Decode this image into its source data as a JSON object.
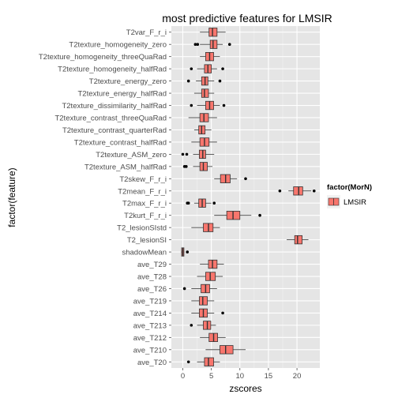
{
  "chart_data": {
    "type": "boxplot",
    "title": "most predictive features for LMSIR",
    "xlabel": "zscores",
    "ylabel": "factor(feature)",
    "xlim": [
      -2,
      24
    ],
    "xticks": [
      0,
      5,
      10,
      15,
      20
    ],
    "grid": true,
    "legend": {
      "title": "factor(MorN)",
      "entries": [
        "LMSIR"
      ],
      "placement": "right"
    },
    "colors": {
      "fill": "#f8766d",
      "panel": "#e5e5e5",
      "grid_major": "#ffffff",
      "grid_minor": "#f2f2f2",
      "line": "#333333"
    },
    "series": [
      {
        "name": "LMSIR",
        "categories": [
          "T2var_F_r_i",
          "T2texture_homogeneity_zero",
          "T2texture_homogeneity_threeQuaRad",
          "T2texture_homogeneity_halfRad",
          "T2texture_energy_zero",
          "T2texture_energy_halfRad",
          "T2texture_dissimilarity_halfRad",
          "T2texture_contrast_threeQuaRad",
          "T2texture_contrast_quarterRad",
          "T2texture_contrast_halfRad",
          "T2texture_ASM_zero",
          "T2texture_ASM_halfRad",
          "T2skew_F_r_i",
          "T2mean_F_r_i",
          "T2max_F_r_i",
          "T2kurt_F_r_i",
          "T2_lesionSIstd",
          "T2_lesionSI",
          "shadowMean",
          "ave_T29",
          "ave_T28",
          "ave_T26",
          "ave_T219",
          "ave_T214",
          "ave_T213",
          "ave_T212",
          "ave_T210",
          "ave_T20"
        ],
        "boxes": [
          {
            "min": 3.0,
            "q1": 4.6,
            "median": 5.2,
            "q3": 6.0,
            "max": 7.5,
            "outliers": []
          },
          {
            "min": 3.0,
            "q1": 4.8,
            "median": 5.3,
            "q3": 6.0,
            "max": 7.0,
            "outliers": [
              2.2,
              2.6,
              8.2
            ]
          },
          {
            "min": 3.0,
            "q1": 4.0,
            "median": 4.7,
            "q3": 5.4,
            "max": 6.5,
            "outliers": []
          },
          {
            "min": 2.5,
            "q1": 3.8,
            "median": 4.4,
            "q3": 5.0,
            "max": 6.0,
            "outliers": [
              1.5,
              7.0
            ]
          },
          {
            "min": 2.3,
            "q1": 3.3,
            "median": 3.9,
            "q3": 4.4,
            "max": 5.5,
            "outliers": [
              1.0,
              6.5
            ]
          },
          {
            "min": 2.0,
            "q1": 3.3,
            "median": 3.8,
            "q3": 4.5,
            "max": 5.5,
            "outliers": []
          },
          {
            "min": 2.5,
            "q1": 4.0,
            "median": 4.7,
            "q3": 5.4,
            "max": 6.5,
            "outliers": [
              1.5,
              7.2
            ]
          },
          {
            "min": 1.0,
            "q1": 3.0,
            "median": 3.7,
            "q3": 4.5,
            "max": 6.0,
            "outliers": []
          },
          {
            "min": 2.0,
            "q1": 2.8,
            "median": 3.3,
            "q3": 3.9,
            "max": 5.0,
            "outliers": []
          },
          {
            "min": 1.5,
            "q1": 3.0,
            "median": 3.8,
            "q3": 4.6,
            "max": 6.0,
            "outliers": []
          },
          {
            "min": 1.8,
            "q1": 2.9,
            "median": 3.5,
            "q3": 4.0,
            "max": 5.5,
            "outliers": [
              0.0,
              0.7
            ]
          },
          {
            "min": 1.8,
            "q1": 3.0,
            "median": 3.6,
            "q3": 4.3,
            "max": 5.2,
            "outliers": [
              0.3,
              0.6
            ]
          },
          {
            "min": 5.5,
            "q1": 6.6,
            "median": 7.5,
            "q3": 8.3,
            "max": 9.5,
            "outliers": [
              11.0
            ]
          },
          {
            "min": 18.5,
            "q1": 19.4,
            "median": 20.3,
            "q3": 21.0,
            "max": 22.5,
            "outliers": [
              17.0,
              23.0
            ]
          },
          {
            "min": 2.0,
            "q1": 2.8,
            "median": 3.4,
            "q3": 4.0,
            "max": 5.0,
            "outliers": [
              0.8,
              1.0,
              5.5
            ]
          },
          {
            "min": 5.5,
            "q1": 7.7,
            "median": 8.8,
            "q3": 10.0,
            "max": 12.0,
            "outliers": [
              13.5
            ]
          },
          {
            "min": 1.5,
            "q1": 3.6,
            "median": 4.5,
            "q3": 5.3,
            "max": 6.5,
            "outliers": []
          },
          {
            "min": 18.2,
            "q1": 19.6,
            "median": 20.1,
            "q3": 20.9,
            "max": 22.0,
            "outliers": []
          },
          {
            "min": -0.3,
            "q1": -0.2,
            "median": 0.0,
            "q3": 0.2,
            "max": 0.3,
            "outliers": [
              0.8
            ]
          },
          {
            "min": 3.0,
            "q1": 4.5,
            "median": 5.2,
            "q3": 6.0,
            "max": 7.2,
            "outliers": []
          },
          {
            "min": 2.5,
            "q1": 4.0,
            "median": 4.8,
            "q3": 5.7,
            "max": 7.0,
            "outliers": []
          },
          {
            "min": 1.5,
            "q1": 3.2,
            "median": 4.0,
            "q3": 4.7,
            "max": 6.0,
            "outliers": [
              0.3
            ]
          },
          {
            "min": 1.5,
            "q1": 2.9,
            "median": 3.5,
            "q3": 4.3,
            "max": 5.5,
            "outliers": []
          },
          {
            "min": 1.5,
            "q1": 2.9,
            "median": 3.6,
            "q3": 4.3,
            "max": 5.5,
            "outliers": [
              7.0
            ]
          },
          {
            "min": 2.5,
            "q1": 3.6,
            "median": 4.3,
            "q3": 4.9,
            "max": 5.8,
            "outliers": [
              1.5
            ]
          },
          {
            "min": 3.0,
            "q1": 4.6,
            "median": 5.4,
            "q3": 6.1,
            "max": 7.5,
            "outliers": []
          },
          {
            "min": 4.0,
            "q1": 6.5,
            "median": 7.5,
            "q3": 8.8,
            "max": 11.0,
            "outliers": []
          },
          {
            "min": 2.5,
            "q1": 3.8,
            "median": 4.5,
            "q3": 5.4,
            "max": 6.5,
            "outliers": [
              1.0
            ]
          }
        ]
      }
    ]
  }
}
